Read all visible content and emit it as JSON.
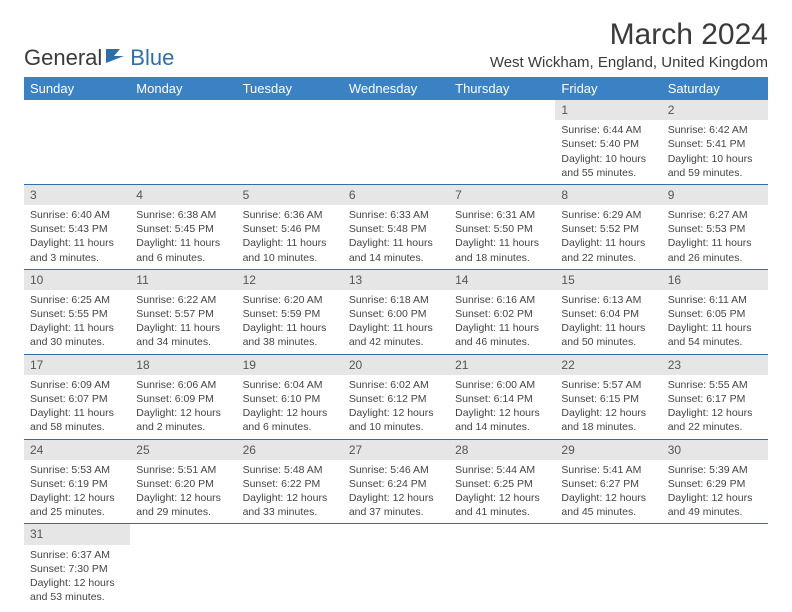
{
  "logo": {
    "text_general": "General",
    "text_blue": "Blue"
  },
  "header": {
    "month_title": "March 2024",
    "location": "West Wickham, England, United Kingdom"
  },
  "colors": {
    "header_bg": "#3b82c4",
    "header_text": "#ffffff",
    "daynum_bg": "#e6e6e6",
    "row_border": "#2f6fa8",
    "logo_blue": "#2f6fa8"
  },
  "weekdays": [
    "Sunday",
    "Monday",
    "Tuesday",
    "Wednesday",
    "Thursday",
    "Friday",
    "Saturday"
  ],
  "weeks": [
    [
      null,
      null,
      null,
      null,
      null,
      {
        "num": "1",
        "sunrise": "Sunrise: 6:44 AM",
        "sunset": "Sunset: 5:40 PM",
        "daylight": "Daylight: 10 hours and 55 minutes."
      },
      {
        "num": "2",
        "sunrise": "Sunrise: 6:42 AM",
        "sunset": "Sunset: 5:41 PM",
        "daylight": "Daylight: 10 hours and 59 minutes."
      }
    ],
    [
      {
        "num": "3",
        "sunrise": "Sunrise: 6:40 AM",
        "sunset": "Sunset: 5:43 PM",
        "daylight": "Daylight: 11 hours and 3 minutes."
      },
      {
        "num": "4",
        "sunrise": "Sunrise: 6:38 AM",
        "sunset": "Sunset: 5:45 PM",
        "daylight": "Daylight: 11 hours and 6 minutes."
      },
      {
        "num": "5",
        "sunrise": "Sunrise: 6:36 AM",
        "sunset": "Sunset: 5:46 PM",
        "daylight": "Daylight: 11 hours and 10 minutes."
      },
      {
        "num": "6",
        "sunrise": "Sunrise: 6:33 AM",
        "sunset": "Sunset: 5:48 PM",
        "daylight": "Daylight: 11 hours and 14 minutes."
      },
      {
        "num": "7",
        "sunrise": "Sunrise: 6:31 AM",
        "sunset": "Sunset: 5:50 PM",
        "daylight": "Daylight: 11 hours and 18 minutes."
      },
      {
        "num": "8",
        "sunrise": "Sunrise: 6:29 AM",
        "sunset": "Sunset: 5:52 PM",
        "daylight": "Daylight: 11 hours and 22 minutes."
      },
      {
        "num": "9",
        "sunrise": "Sunrise: 6:27 AM",
        "sunset": "Sunset: 5:53 PM",
        "daylight": "Daylight: 11 hours and 26 minutes."
      }
    ],
    [
      {
        "num": "10",
        "sunrise": "Sunrise: 6:25 AM",
        "sunset": "Sunset: 5:55 PM",
        "daylight": "Daylight: 11 hours and 30 minutes."
      },
      {
        "num": "11",
        "sunrise": "Sunrise: 6:22 AM",
        "sunset": "Sunset: 5:57 PM",
        "daylight": "Daylight: 11 hours and 34 minutes."
      },
      {
        "num": "12",
        "sunrise": "Sunrise: 6:20 AM",
        "sunset": "Sunset: 5:59 PM",
        "daylight": "Daylight: 11 hours and 38 minutes."
      },
      {
        "num": "13",
        "sunrise": "Sunrise: 6:18 AM",
        "sunset": "Sunset: 6:00 PM",
        "daylight": "Daylight: 11 hours and 42 minutes."
      },
      {
        "num": "14",
        "sunrise": "Sunrise: 6:16 AM",
        "sunset": "Sunset: 6:02 PM",
        "daylight": "Daylight: 11 hours and 46 minutes."
      },
      {
        "num": "15",
        "sunrise": "Sunrise: 6:13 AM",
        "sunset": "Sunset: 6:04 PM",
        "daylight": "Daylight: 11 hours and 50 minutes."
      },
      {
        "num": "16",
        "sunrise": "Sunrise: 6:11 AM",
        "sunset": "Sunset: 6:05 PM",
        "daylight": "Daylight: 11 hours and 54 minutes."
      }
    ],
    [
      {
        "num": "17",
        "sunrise": "Sunrise: 6:09 AM",
        "sunset": "Sunset: 6:07 PM",
        "daylight": "Daylight: 11 hours and 58 minutes."
      },
      {
        "num": "18",
        "sunrise": "Sunrise: 6:06 AM",
        "sunset": "Sunset: 6:09 PM",
        "daylight": "Daylight: 12 hours and 2 minutes."
      },
      {
        "num": "19",
        "sunrise": "Sunrise: 6:04 AM",
        "sunset": "Sunset: 6:10 PM",
        "daylight": "Daylight: 12 hours and 6 minutes."
      },
      {
        "num": "20",
        "sunrise": "Sunrise: 6:02 AM",
        "sunset": "Sunset: 6:12 PM",
        "daylight": "Daylight: 12 hours and 10 minutes."
      },
      {
        "num": "21",
        "sunrise": "Sunrise: 6:00 AM",
        "sunset": "Sunset: 6:14 PM",
        "daylight": "Daylight: 12 hours and 14 minutes."
      },
      {
        "num": "22",
        "sunrise": "Sunrise: 5:57 AM",
        "sunset": "Sunset: 6:15 PM",
        "daylight": "Daylight: 12 hours and 18 minutes."
      },
      {
        "num": "23",
        "sunrise": "Sunrise: 5:55 AM",
        "sunset": "Sunset: 6:17 PM",
        "daylight": "Daylight: 12 hours and 22 minutes."
      }
    ],
    [
      {
        "num": "24",
        "sunrise": "Sunrise: 5:53 AM",
        "sunset": "Sunset: 6:19 PM",
        "daylight": "Daylight: 12 hours and 25 minutes."
      },
      {
        "num": "25",
        "sunrise": "Sunrise: 5:51 AM",
        "sunset": "Sunset: 6:20 PM",
        "daylight": "Daylight: 12 hours and 29 minutes."
      },
      {
        "num": "26",
        "sunrise": "Sunrise: 5:48 AM",
        "sunset": "Sunset: 6:22 PM",
        "daylight": "Daylight: 12 hours and 33 minutes."
      },
      {
        "num": "27",
        "sunrise": "Sunrise: 5:46 AM",
        "sunset": "Sunset: 6:24 PM",
        "daylight": "Daylight: 12 hours and 37 minutes."
      },
      {
        "num": "28",
        "sunrise": "Sunrise: 5:44 AM",
        "sunset": "Sunset: 6:25 PM",
        "daylight": "Daylight: 12 hours and 41 minutes."
      },
      {
        "num": "29",
        "sunrise": "Sunrise: 5:41 AM",
        "sunset": "Sunset: 6:27 PM",
        "daylight": "Daylight: 12 hours and 45 minutes."
      },
      {
        "num": "30",
        "sunrise": "Sunrise: 5:39 AM",
        "sunset": "Sunset: 6:29 PM",
        "daylight": "Daylight: 12 hours and 49 minutes."
      }
    ],
    [
      {
        "num": "31",
        "sunrise": "Sunrise: 6:37 AM",
        "sunset": "Sunset: 7:30 PM",
        "daylight": "Daylight: 12 hours and 53 minutes."
      },
      null,
      null,
      null,
      null,
      null,
      null
    ]
  ]
}
